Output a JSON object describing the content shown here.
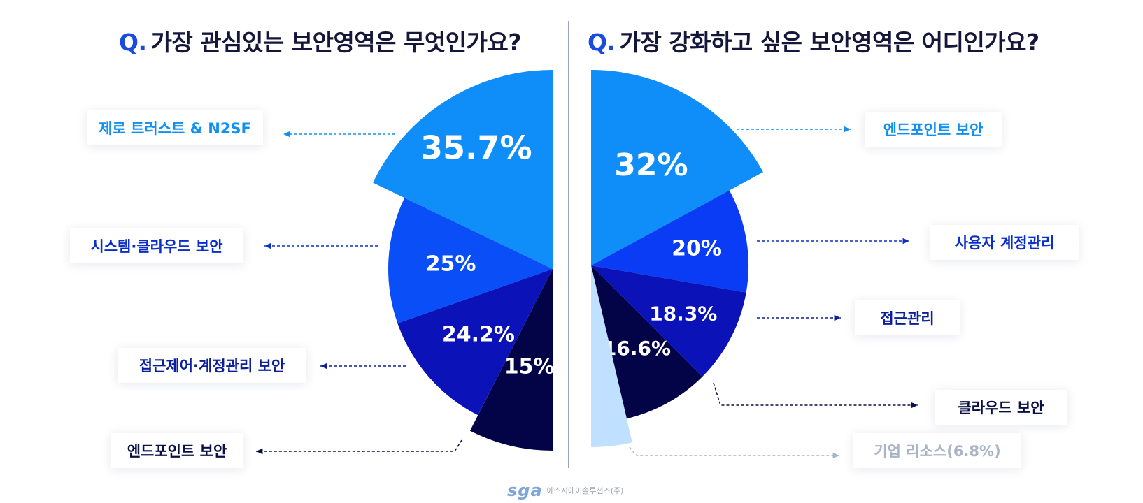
{
  "titles": {
    "q_mark": "Q.",
    "left": "가장 관심있는 보안영역은 무엇인가요?",
    "right": "가장 강화하고 싶은 보안영역은 어디인가요?"
  },
  "footer": {
    "logo": "sga",
    "company": "에스지에이솔루션즈(주)"
  },
  "chart_data": [
    {
      "type": "pie",
      "title": "가장 관심있는 보안영역은 무엇인가요?",
      "categories": [
        "제로 트러스트 & N2SF",
        "시스템·클라우드 보안",
        "접근제어·계정관리 보안",
        "엔드포인트 보안"
      ],
      "values": [
        35.7,
        25,
        24.2,
        15
      ],
      "value_labels": [
        "35.7%",
        "25%",
        "24.2%",
        "15%"
      ],
      "colors": [
        "#0f8df8",
        "#0a4ef7",
        "#0a12b8",
        "#020447"
      ],
      "label_colors": [
        "#1090f0",
        "#0a2ec9",
        "#0a1f99",
        "#0a0f45"
      ]
    },
    {
      "type": "pie",
      "title": "가장 강화하고 싶은 보안영역은 어디인가요?",
      "categories": [
        "엔드포인트 보안",
        "사용자 계정관리",
        "접근관리",
        "클라우드 보안",
        "기업 리소스(6.8%)"
      ],
      "values": [
        32,
        20,
        18.3,
        16.6,
        6.8
      ],
      "value_labels": [
        "32%",
        "20%",
        "18.3%",
        "16.6%",
        ""
      ],
      "colors": [
        "#0f8df8",
        "#0a3cf5",
        "#0a12b8",
        "#020447",
        "#bfe0ff"
      ],
      "label_colors": [
        "#1090f0",
        "#0a2ec9",
        "#0a1f99",
        "#0a0f45",
        "#a9b4c6"
      ]
    }
  ]
}
